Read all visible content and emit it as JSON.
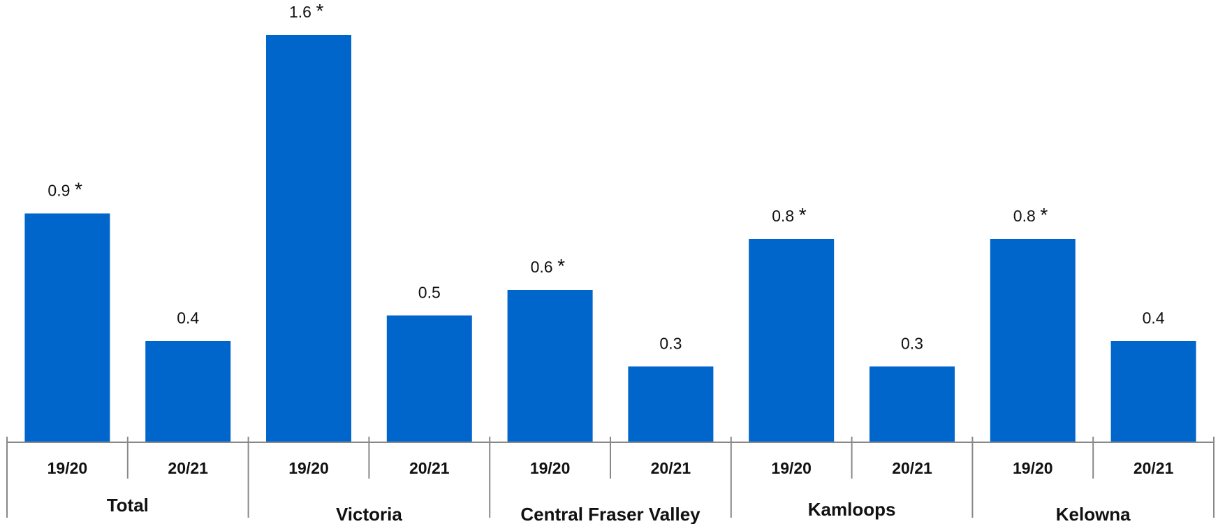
{
  "chart_data": {
    "type": "bar",
    "groups": [
      {
        "name": "Total",
        "bars": [
          {
            "period": "19/20",
            "value": 0.9,
            "label": "0.9",
            "significant": true
          },
          {
            "period": "20/21",
            "value": 0.4,
            "label": "0.4",
            "significant": false
          }
        ]
      },
      {
        "name": "Victoria",
        "bars": [
          {
            "period": "19/20",
            "value": 1.6,
            "label": "1.6",
            "significant": true
          },
          {
            "period": "20/21",
            "value": 0.5,
            "label": "0.5",
            "significant": false
          }
        ]
      },
      {
        "name": "Central Fraser Valley",
        "bars": [
          {
            "period": "19/20",
            "value": 0.6,
            "label": "0.6",
            "significant": true
          },
          {
            "period": "20/21",
            "value": 0.3,
            "label": "0.3",
            "significant": false
          }
        ]
      },
      {
        "name": "Kamloops",
        "bars": [
          {
            "period": "19/20",
            "value": 0.8,
            "label": "0.8",
            "significant": true
          },
          {
            "period": "20/21",
            "value": 0.3,
            "label": "0.3",
            "significant": false
          }
        ]
      },
      {
        "name": "Kelowna",
        "bars": [
          {
            "period": "19/20",
            "value": 0.8,
            "label": "0.8",
            "significant": true
          },
          {
            "period": "20/21",
            "value": 0.4,
            "label": "0.4",
            "significant": false
          }
        ]
      }
    ],
    "significance_marker": "*",
    "bar_color": "#0066CC",
    "ylim": [
      0,
      1.6
    ],
    "grid": false,
    "legend": "none"
  }
}
